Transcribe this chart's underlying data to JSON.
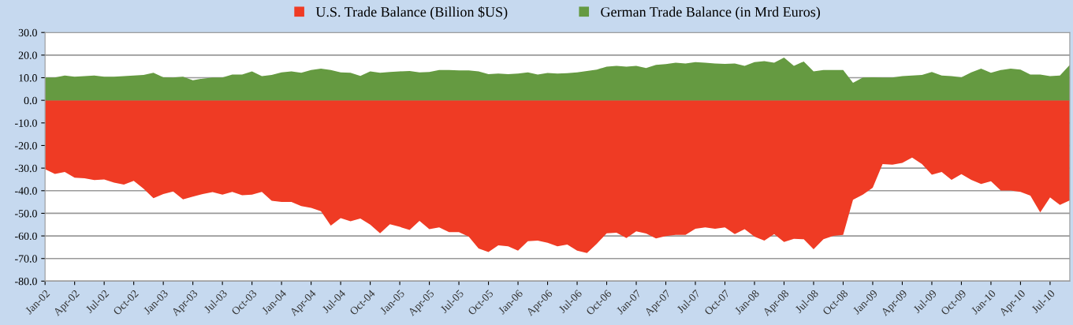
{
  "chart_data": {
    "type": "area",
    "categories": [
      "Jan-02",
      null,
      null,
      "Apr-02",
      null,
      null,
      "Jul-02",
      null,
      null,
      "Oct-02",
      null,
      null,
      "Jan-03",
      null,
      null,
      "Apr-03",
      null,
      null,
      "Jul-03",
      null,
      null,
      "Oct-03",
      null,
      null,
      "Jan-04",
      null,
      null,
      "Apr-04",
      null,
      null,
      "Jul-04",
      null,
      null,
      "Oct-04",
      null,
      null,
      "Jan-05",
      null,
      null,
      "Apr-05",
      null,
      null,
      "Jul-05",
      null,
      null,
      "Oct-05",
      null,
      null,
      "Jan-06",
      null,
      null,
      "Apr-06",
      null,
      null,
      "Jul-06",
      null,
      null,
      "Oct-06",
      null,
      null,
      "Jan-07",
      null,
      null,
      "Apr-07",
      null,
      null,
      "Jul-07",
      null,
      null,
      "Oct-07",
      null,
      null,
      "Jan-08",
      null,
      null,
      "Apr-08",
      null,
      null,
      "Jul-08",
      null,
      null,
      "Oct-08",
      null,
      null,
      "Jan-09",
      null,
      null,
      "Apr-09",
      null,
      null,
      "Jul-09",
      null,
      null,
      "Oct-09",
      null,
      null,
      "Jan-10",
      null,
      null,
      "Apr-10",
      null,
      null,
      "Jul-10",
      null,
      null
    ],
    "series": [
      {
        "name": "U.S. Trade Balance (Billion $US)",
        "color": "#ef3b24",
        "values": [
          -30.5,
          -32.6,
          -31.7,
          -34.2,
          -34.5,
          -35.3,
          -35.0,
          -36.4,
          -37.3,
          -35.6,
          -39.1,
          -43.3,
          -41.5,
          -40.3,
          -43.8,
          -42.6,
          -41.5,
          -40.6,
          -41.7,
          -40.5,
          -42.0,
          -41.7,
          -40.5,
          -44.4,
          -45.0,
          -45.0,
          -46.8,
          -47.6,
          -49.1,
          -55.4,
          -52.1,
          -53.5,
          -52.3,
          -55.0,
          -58.8,
          -54.8,
          -56.0,
          -57.4,
          -53.3,
          -57.0,
          -56.2,
          -58.3,
          -58.3,
          -60.3,
          -65.6,
          -67.1,
          -64.2,
          -64.6,
          -66.5,
          -62.3,
          -62.1,
          -63.0,
          -64.6,
          -63.8,
          -66.5,
          -67.6,
          -63.5,
          -58.8,
          -58.6,
          -60.9,
          -58.0,
          -58.9,
          -61.1,
          -60.1,
          -59.5,
          -59.5,
          -56.8,
          -56.2,
          -56.8,
          -56.2,
          -59.2,
          -57.0,
          -60.3,
          -62.1,
          -59.2,
          -62.7,
          -61.3,
          -61.5,
          -65.9,
          -61.5,
          -60.0,
          -59.5,
          -44.0,
          -41.7,
          -38.7,
          -28.2,
          -28.5,
          -27.7,
          -25.3,
          -28.2,
          -32.9,
          -31.7,
          -35.2,
          -32.7,
          -35.2,
          -37.0,
          -35.8,
          -39.9,
          -39.9,
          -40.5,
          -42.2,
          -49.6,
          -43.0,
          -46.3,
          -44.3
        ]
      },
      {
        "name": "German Trade Balance (in Mrd Euros)",
        "color": "#659a41",
        "values": [
          10.1,
          10.1,
          11.0,
          10.4,
          10.7,
          11.0,
          10.4,
          10.4,
          10.7,
          11.0,
          11.2,
          12.2,
          10.2,
          10.1,
          10.4,
          8.9,
          9.6,
          10.1,
          10.1,
          11.4,
          11.4,
          12.8,
          10.7,
          11.2,
          12.4,
          12.8,
          12.2,
          13.4,
          14.0,
          13.4,
          12.4,
          12.2,
          10.8,
          12.8,
          12.2,
          12.5,
          12.8,
          13.0,
          12.4,
          12.5,
          13.4,
          13.4,
          13.2,
          13.2,
          12.8,
          11.6,
          11.8,
          11.6,
          11.8,
          12.4,
          11.4,
          12.1,
          11.8,
          12.0,
          12.4,
          13.0,
          13.6,
          14.9,
          15.2,
          14.9,
          15.2,
          14.3,
          15.7,
          16.0,
          16.6,
          16.3,
          16.9,
          16.6,
          16.3,
          16.1,
          16.3,
          15.2,
          16.9,
          17.3,
          16.6,
          18.9,
          15.2,
          17.2,
          12.8,
          13.4,
          13.4,
          13.4,
          7.7,
          10.1,
          10.2,
          10.1,
          10.1,
          10.7,
          11.0,
          11.2,
          12.5,
          11.0,
          10.7,
          10.2,
          12.4,
          14.0,
          12.2,
          13.4,
          14.0,
          13.6,
          11.4,
          11.4,
          10.7,
          11.0,
          15.7
        ]
      }
    ],
    "ylim": [
      -80,
      30
    ],
    "yticks": [
      {
        "value": 30,
        "label": "30.0"
      },
      {
        "value": 20,
        "label": "20.0"
      },
      {
        "value": 10,
        "label": "10.0"
      },
      {
        "value": 0,
        "label": "0.0"
      },
      {
        "value": -10,
        "label": "-10.0"
      },
      {
        "value": -20,
        "label": "-20.0"
      },
      {
        "value": -30,
        "label": "-30.0"
      },
      {
        "value": -40,
        "label": "-40.0"
      },
      {
        "value": -50,
        "label": "-50.0"
      },
      {
        "value": -60,
        "label": "-60.0"
      },
      {
        "value": -70,
        "label": "-70.0"
      },
      {
        "value": -80,
        "label": "-80.0"
      }
    ],
    "grid": "y",
    "legend": "top"
  }
}
